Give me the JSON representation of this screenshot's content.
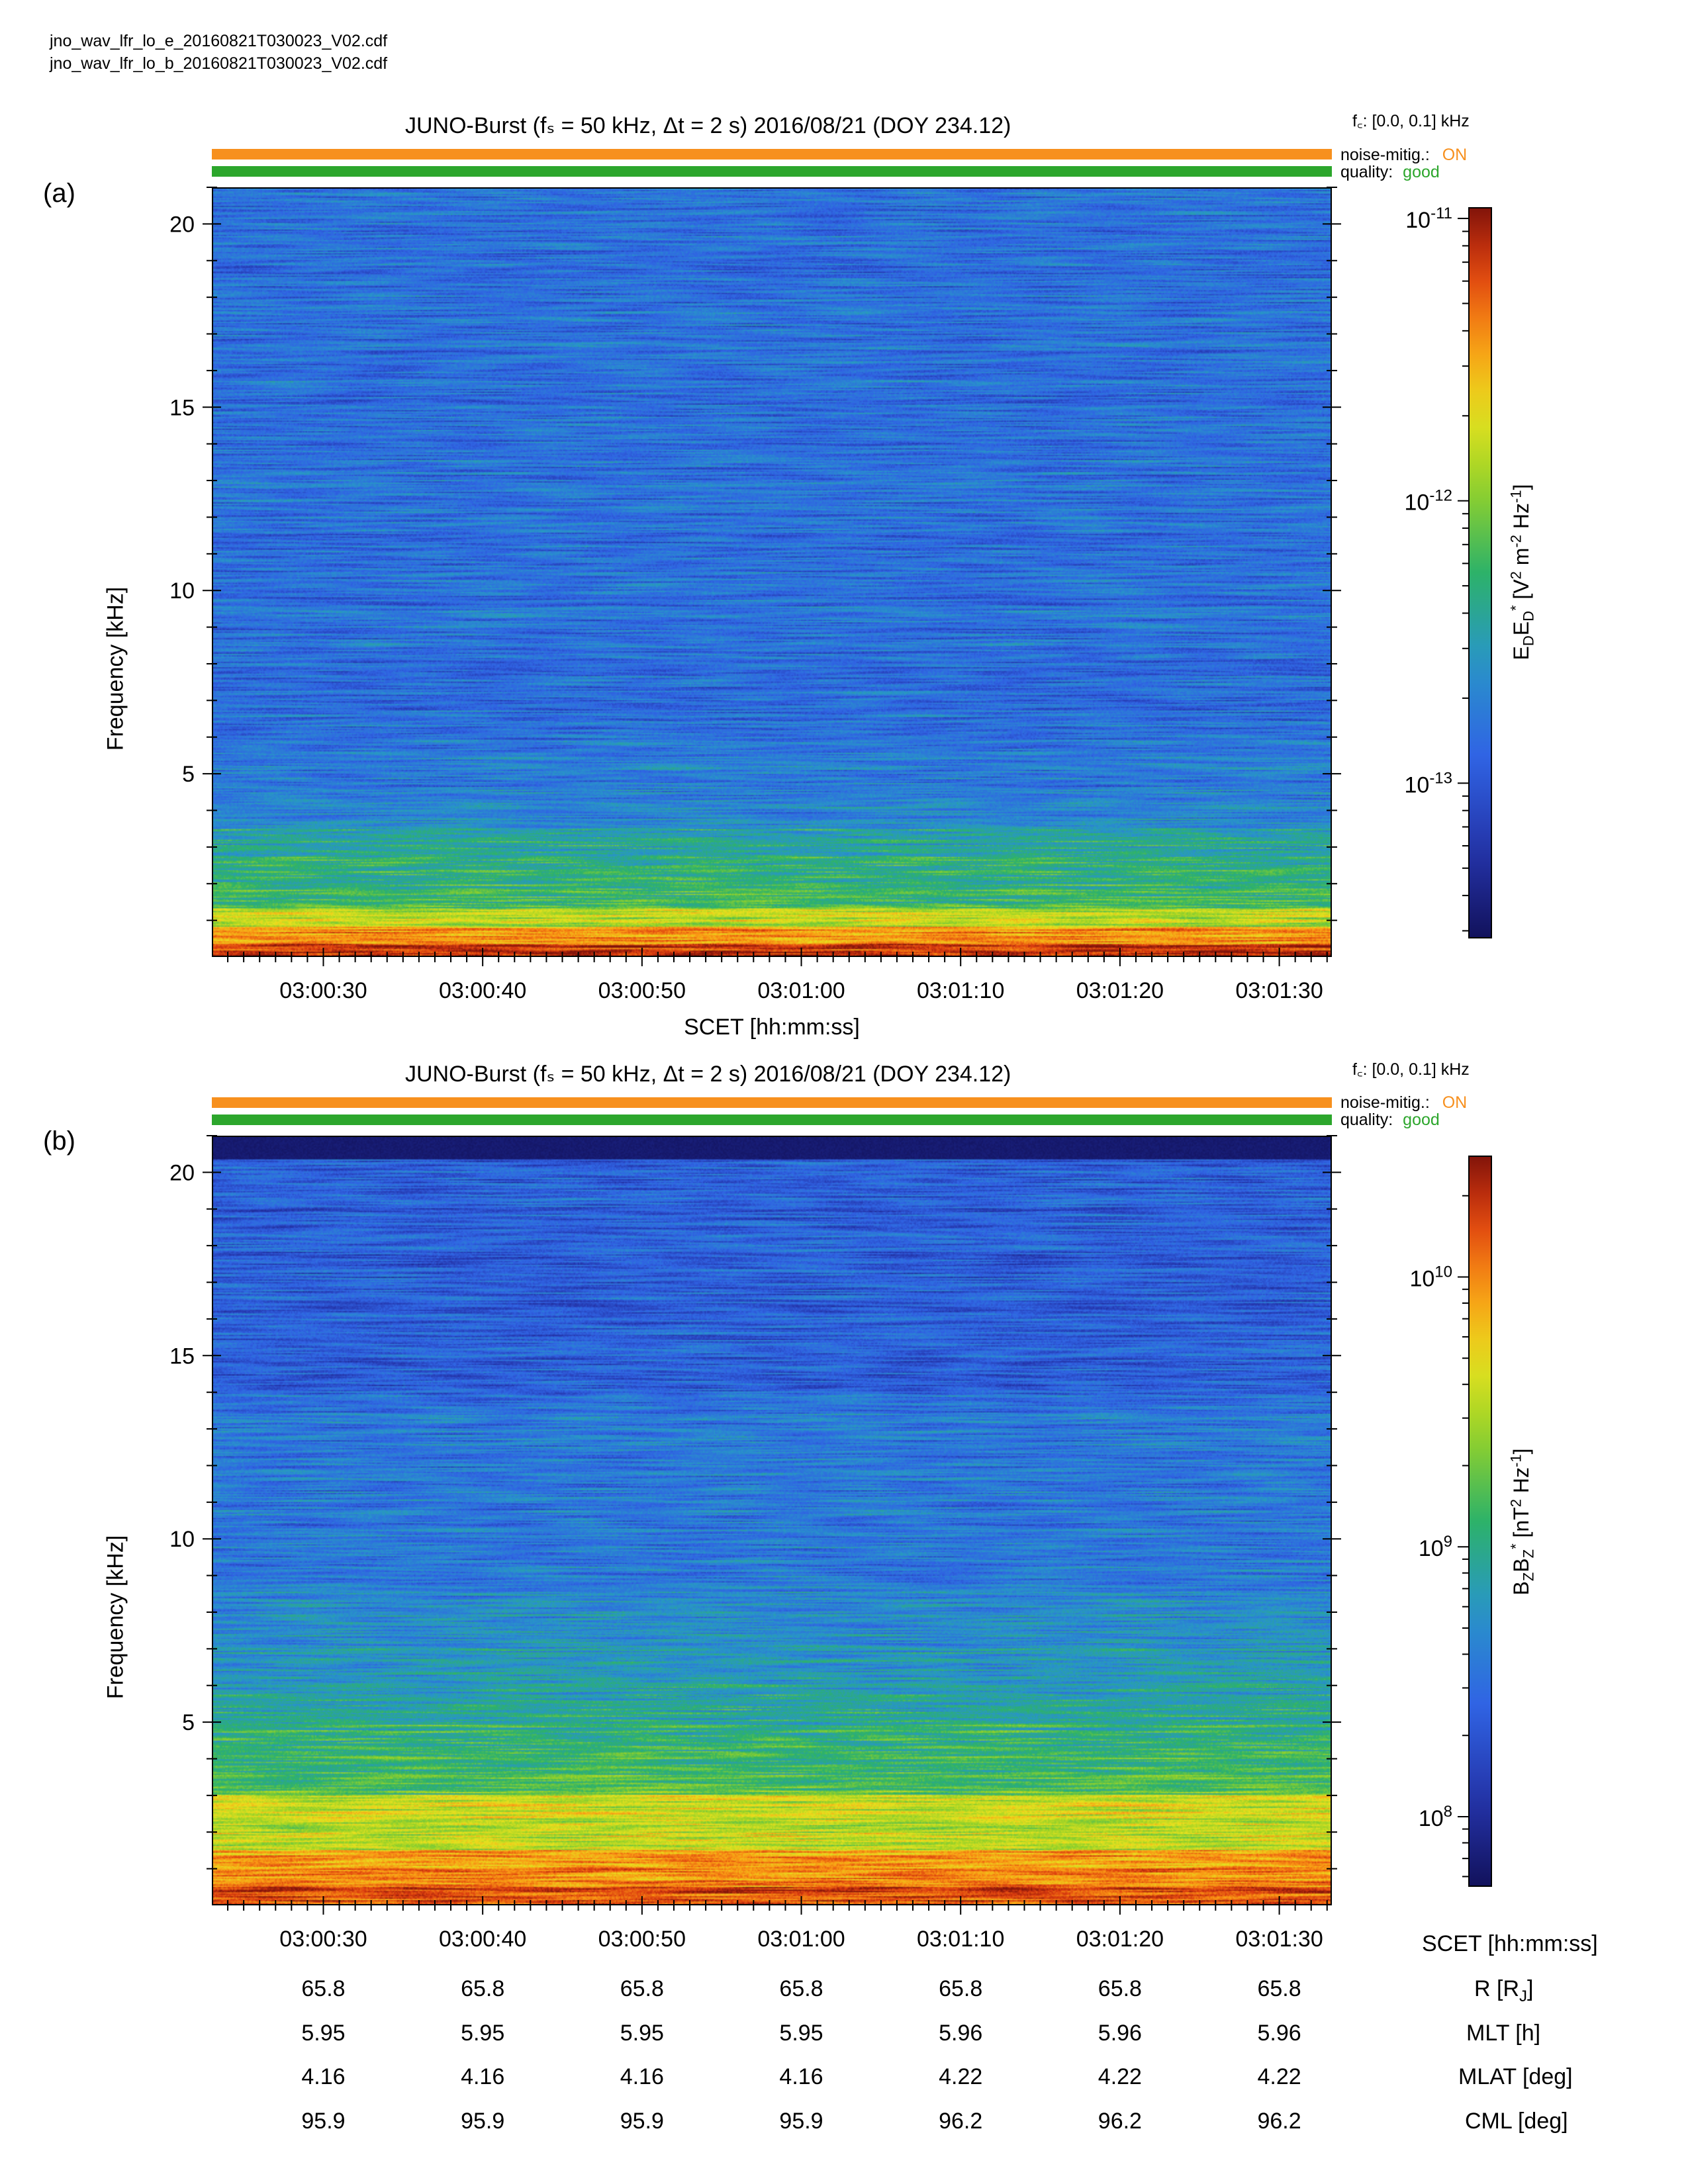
{
  "files": [
    "jno_wav_lfr_lo_e_20160821T030023_V02.cdf",
    "jno_wav_lfr_lo_b_20160821T030023_V02.cdf"
  ],
  "colors": {
    "noise_bar": "#f7901e",
    "quality_bar": "#2ca62c",
    "on_text": "#f7901e",
    "good_text": "#2ca62c"
  },
  "panels": [
    {
      "label": "(a)",
      "title": "JUNO-Burst (fₛ = 50 kHz, Δt = 2 s)  2016/08/21 (DOY 234.12)",
      "fc_text": "f꜀: [0.0, 0.1] kHz",
      "noise_label": "noise-mitig.:",
      "noise_value": "ON",
      "quality_label": "quality:",
      "quality_value": "good",
      "ylabel": "Frequency [kHz]",
      "xlabel": "SCET [hh:mm:ss]",
      "cbar_label": "E_D E_D* [V² m⁻² Hz⁻¹]",
      "cbar_ticks": [
        {
          "text": "10",
          "exp": "-11",
          "log": -11
        },
        {
          "text": "10",
          "exp": "-12",
          "log": -12
        },
        {
          "text": "10",
          "exp": "-13",
          "log": -13
        }
      ]
    },
    {
      "label": "(b)",
      "title": "JUNO-Burst (fₛ = 50 kHz, Δt = 2 s)  2016/08/21 (DOY 234.12)",
      "fc_text": "f꜀: [0.0, 0.1] kHz",
      "noise_label": "noise-mitig.:",
      "noise_value": "ON",
      "quality_label": "quality:",
      "quality_value": "good",
      "ylabel": "Frequency [kHz]",
      "xlabel": "",
      "cbar_label": "B_Z B_Z* [nT² Hz⁻¹]",
      "cbar_ticks": [
        {
          "text": "10",
          "exp": "10",
          "log": 10
        },
        {
          "text": "10",
          "exp": "9",
          "log": 9
        },
        {
          "text": "10",
          "exp": "8",
          "log": 8
        }
      ]
    }
  ],
  "chart_data": [
    {
      "type": "heatmap",
      "title": "JUNO-Burst (fₛ = 50 kHz, Δt = 2 s)  2016/08/21 (DOY 234.12)",
      "xlabel": "SCET [hh:mm:ss]",
      "ylabel": "Frequency [kHz]",
      "x_ticks": [
        "03:00:30",
        "03:00:40",
        "03:00:50",
        "03:01:00",
        "03:01:10",
        "03:01:20",
        "03:01:30"
      ],
      "y_ticks": [
        5,
        10,
        15,
        20
      ],
      "ylim": [
        0,
        21
      ],
      "colorbar": {
        "label": "E_D E_D* [V² m⁻² Hz⁻¹]",
        "scale": "log",
        "range": [
          3e-14,
          1.1e-11
        ],
        "colormap": "rainbow (dark blue → dark red)"
      },
      "description_levels": {
        "0-0.5 kHz": "red",
        "0.5-1.5 kHz": "yellow-orange",
        "1.5-4 kHz": "green",
        "4-21 kHz": "blue"
      }
    },
    {
      "type": "heatmap",
      "title": "JUNO-Burst (fₛ = 50 kHz, Δt = 2 s)  2016/08/21 (DOY 234.12)",
      "xlabel": "",
      "ylabel": "Frequency [kHz]",
      "x_ticks": [
        "03:00:30",
        "03:00:40",
        "03:00:50",
        "03:01:00",
        "03:01:10",
        "03:01:20",
        "03:01:30"
      ],
      "y_ticks": [
        5,
        10,
        15,
        20
      ],
      "ylim": [
        0,
        21
      ],
      "colorbar": {
        "label": "B_Z B_Z* [nT² Hz⁻¹]",
        "scale": "log",
        "range": [
          55000000.0,
          28000000000.0
        ],
        "colormap": "rainbow (dark blue → dark red)"
      },
      "description_levels": {
        "0-1.5 kHz": "red-orange",
        "1.5-4 kHz": "yellow-green",
        "4-20 kHz": "blue",
        "20-21 kHz": "dark blue"
      }
    }
  ],
  "ephemeris": {
    "rows": [
      {
        "label": "SCET [hh:mm:ss]",
        "values": [
          "03:00:30",
          "03:00:40",
          "03:00:50",
          "03:01:00",
          "03:01:10",
          "03:01:20",
          "03:01:30"
        ]
      },
      {
        "label": "R [R_J]",
        "values": [
          "65.8",
          "65.8",
          "65.8",
          "65.8",
          "65.8",
          "65.8",
          "65.8"
        ]
      },
      {
        "label": "MLT [h]",
        "values": [
          "5.95",
          "5.95",
          "5.95",
          "5.95",
          "5.96",
          "5.96",
          "5.96"
        ]
      },
      {
        "label": "MLAT [deg]",
        "values": [
          "4.16",
          "4.16",
          "4.16",
          "4.16",
          "4.22",
          "4.22",
          "4.22"
        ]
      },
      {
        "label": "CML [deg]",
        "values": [
          "95.9",
          "95.9",
          "95.9",
          "95.9",
          "96.2",
          "96.2",
          "96.2"
        ]
      }
    ]
  }
}
